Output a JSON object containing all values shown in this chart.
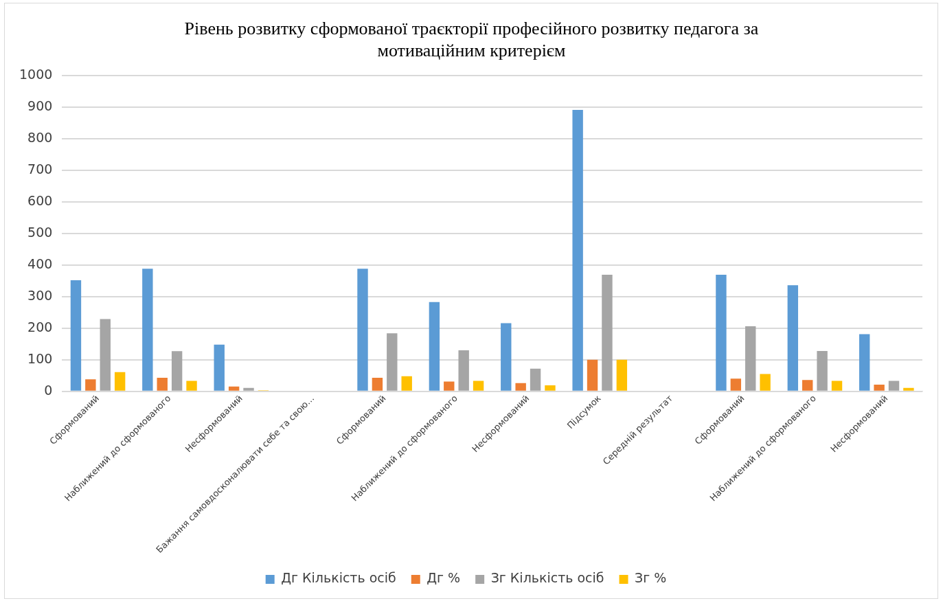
{
  "chart_data": {
    "type": "bar",
    "title": "Рівень розвитку сформованої траєкторії професійного розвитку педагога за мотиваційним критерієм",
    "categories": [
      "Сформований",
      "Наближений до сформованого",
      "Несформований",
      "Бажання самовдосконалювати себе та свою...",
      "Сформований",
      "Наближений до сформованого",
      "Несформований",
      "Підсумок",
      "Середній результат",
      "Сформований",
      "Наближений до сформованого",
      "Несформований"
    ],
    "series": [
      {
        "name": "Дг Кількість осіб",
        "color": "#5b9bd5",
        "values": [
          352,
          388,
          148,
          null,
          388,
          283,
          216,
          891,
          null,
          369,
          336,
          181
        ]
      },
      {
        "name": "Дг %",
        "color": "#ed7d31",
        "values": [
          38,
          43,
          15,
          null,
          43,
          31,
          26,
          100,
          null,
          40,
          36,
          21
        ]
      },
      {
        "name": "Зг Кількість осіб",
        "color": "#a5a5a5",
        "values": [
          229,
          127,
          11,
          null,
          184,
          130,
          72,
          369,
          null,
          206,
          128,
          33
        ]
      },
      {
        "name": "Зг %",
        "color": "#ffc000",
        "values": [
          61,
          33,
          3,
          null,
          48,
          33,
          19,
          100,
          null,
          55,
          33,
          11
        ]
      }
    ],
    "ylim": [
      0,
      1000
    ],
    "yticks": [
      0,
      100,
      200,
      300,
      400,
      500,
      600,
      700,
      800,
      900,
      1000
    ],
    "grid": "y",
    "legend": "bottom"
  }
}
